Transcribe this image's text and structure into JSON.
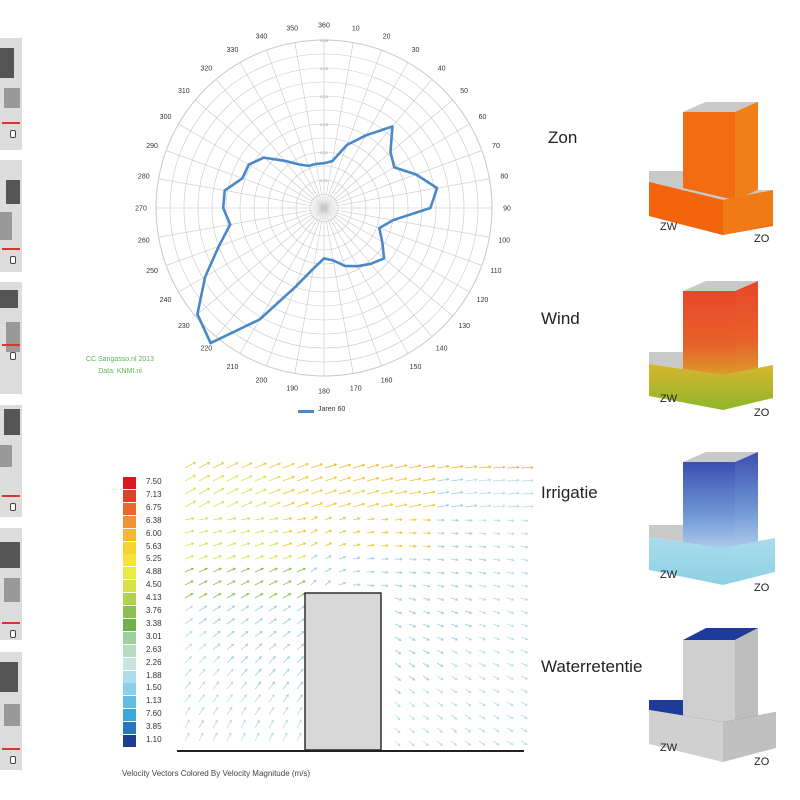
{
  "credit": {
    "line1": "CC Sangasso.nl 2013",
    "line2": "Data: KNMI.nl"
  },
  "wind_rose": {
    "angle_labels": [
      "360",
      "10",
      "20",
      "30",
      "40",
      "50",
      "60",
      "70",
      "80",
      "90",
      "100",
      "110",
      "120",
      "130",
      "140",
      "150",
      "160",
      "170",
      "180",
      "190",
      "200",
      "210",
      "220",
      "230",
      "240",
      "250",
      "260",
      "270",
      "280",
      "290",
      "300",
      "310",
      "320",
      "330",
      "340",
      "350"
    ],
    "radial_ticks": [
      "0,06",
      "0,05",
      "0,04",
      "0,03",
      "0,02",
      "0,01"
    ],
    "legend_label": "Jaren 60",
    "series_color": "#4a88c8"
  },
  "chart_data": {
    "type": "radar",
    "categories": [
      "360",
      "10",
      "20",
      "30",
      "40",
      "50",
      "60",
      "70",
      "80",
      "90",
      "100",
      "110",
      "120",
      "130",
      "140",
      "150",
      "160",
      "170",
      "180",
      "190",
      "200",
      "210",
      "220",
      "230",
      "240",
      "250",
      "260",
      "270",
      "280",
      "290",
      "300",
      "310",
      "320",
      "330",
      "340",
      "350"
    ],
    "series": [
      {
        "name": "Jaren 60",
        "values": [
          0.016,
          0.017,
          0.024,
          0.03,
          0.038,
          0.031,
          0.029,
          0.035,
          0.041,
          0.038,
          0.025,
          0.021,
          0.024,
          0.028,
          0.026,
          0.024,
          0.022,
          0.019,
          0.018,
          0.022,
          0.03,
          0.046,
          0.063,
          0.059,
          0.049,
          0.04,
          0.034,
          0.036,
          0.036,
          0.031,
          0.031,
          0.028,
          0.022,
          0.018,
          0.016,
          0.016
        ]
      }
    ],
    "r_range": [
      0,
      0.06
    ]
  },
  "velocity_plot": {
    "legend_values": [
      "7.50",
      "7.13",
      "6.75",
      "6.38",
      "6.00",
      "5.63",
      "5.25",
      "4.88",
      "4.50",
      "4.13",
      "3.76",
      "3.38",
      "3.01",
      "2.63",
      "2.26",
      "1.88",
      "1.50",
      "1.13",
      "7.60",
      "3.85",
      "1.10"
    ],
    "legend_colors": [
      "#d7191c",
      "#e0402a",
      "#e8682e",
      "#f09332",
      "#f5b731",
      "#f8d232",
      "#f6e33a",
      "#eaea45",
      "#d7e24a",
      "#b3d14e",
      "#8cc152",
      "#6fb14a",
      "#9fcf9a",
      "#b9dbc0",
      "#c7e6df",
      "#aedced",
      "#8ccfe8",
      "#63bde3",
      "#3aa7de",
      "#2478c0",
      "#1e3d8f"
    ],
    "caption": "Velocity Vectors Colored By Velocity Magnitude (m/s)"
  },
  "panels": [
    {
      "label": "Zon",
      "zw": "ZW",
      "zo": "ZO"
    },
    {
      "label": "Wind",
      "zw": "ZW",
      "zo": "ZO"
    },
    {
      "label": "Irrigatie",
      "zw": "ZW",
      "zo": "ZO"
    },
    {
      "label": "Waterretentie",
      "zw": "ZW",
      "zo": "ZO"
    }
  ]
}
